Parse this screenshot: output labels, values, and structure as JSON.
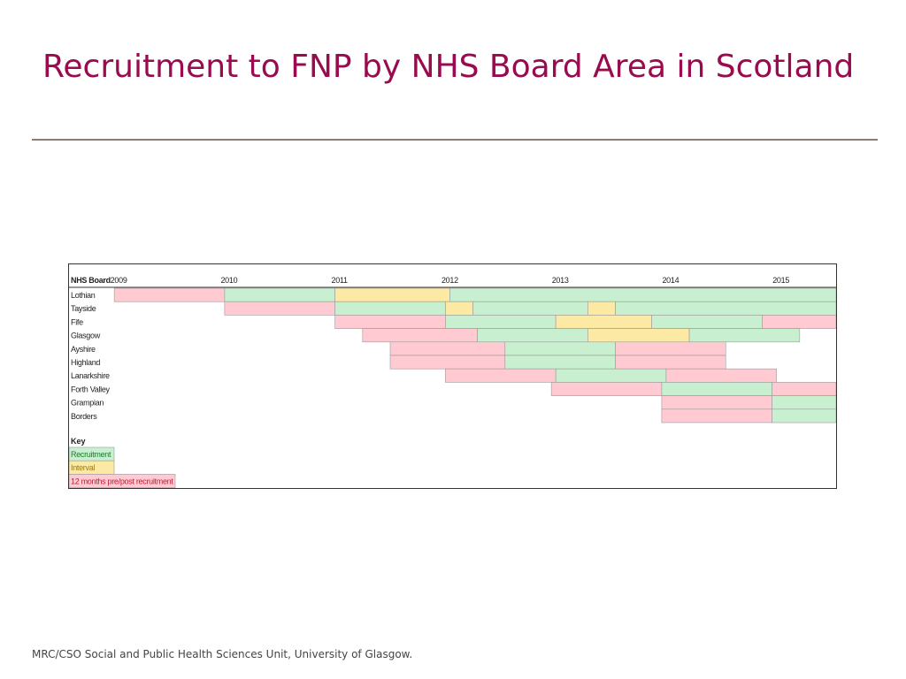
{
  "page": {
    "title": "Recruitment to FNP by NHS Board Area in Scotland",
    "footer": "MRC/CSO Social and Public Health Sciences Unit, University of Glasgow."
  },
  "chart_data": {
    "type": "table",
    "title": "",
    "row_header": "NHS Board",
    "years": [
      "2009",
      "2010",
      "2011",
      "2012",
      "2013",
      "2014",
      "2015"
    ],
    "x_range": [
      2008.55,
      2015.5
    ],
    "grid": false,
    "boards": [
      {
        "name": "Lothian",
        "segments": [
          {
            "start": 2008.96,
            "end": 2009.96,
            "status": "pre_post"
          },
          {
            "start": 2009.96,
            "end": 2010.96,
            "status": "recruitment"
          },
          {
            "start": 2010.96,
            "end": 2012.0,
            "status": "interval"
          },
          {
            "start": 2012.0,
            "end": 2015.5,
            "status": "recruitment"
          }
        ]
      },
      {
        "name": "Tayside",
        "segments": [
          {
            "start": 2009.96,
            "end": 2010.96,
            "status": "pre_post"
          },
          {
            "start": 2010.96,
            "end": 2011.96,
            "status": "recruitment"
          },
          {
            "start": 2011.96,
            "end": 2012.21,
            "status": "interval"
          },
          {
            "start": 2012.21,
            "end": 2013.25,
            "status": "recruitment"
          },
          {
            "start": 2013.25,
            "end": 2013.5,
            "status": "interval"
          },
          {
            "start": 2013.5,
            "end": 2015.5,
            "status": "recruitment"
          }
        ]
      },
      {
        "name": "Fife",
        "segments": [
          {
            "start": 2010.96,
            "end": 2011.96,
            "status": "pre_post"
          },
          {
            "start": 2011.96,
            "end": 2012.96,
            "status": "recruitment"
          },
          {
            "start": 2012.96,
            "end": 2013.83,
            "status": "interval"
          },
          {
            "start": 2013.83,
            "end": 2014.83,
            "status": "recruitment"
          },
          {
            "start": 2014.83,
            "end": 2015.5,
            "status": "pre_post"
          }
        ]
      },
      {
        "name": "Glasgow",
        "segments": [
          {
            "start": 2011.21,
            "end": 2012.25,
            "status": "pre_post"
          },
          {
            "start": 2012.25,
            "end": 2013.25,
            "status": "recruitment"
          },
          {
            "start": 2013.25,
            "end": 2014.17,
            "status": "interval"
          },
          {
            "start": 2014.17,
            "end": 2015.17,
            "status": "recruitment"
          }
        ]
      },
      {
        "name": "Ayshire",
        "segments": [
          {
            "start": 2011.46,
            "end": 2012.5,
            "status": "pre_post"
          },
          {
            "start": 2012.5,
            "end": 2013.5,
            "status": "recruitment"
          },
          {
            "start": 2013.5,
            "end": 2014.5,
            "status": "pre_post"
          }
        ]
      },
      {
        "name": "Highland",
        "segments": [
          {
            "start": 2011.46,
            "end": 2012.5,
            "status": "pre_post"
          },
          {
            "start": 2012.5,
            "end": 2013.5,
            "status": "recruitment"
          },
          {
            "start": 2013.5,
            "end": 2014.5,
            "status": "pre_post"
          }
        ]
      },
      {
        "name": "Lanarkshire",
        "segments": [
          {
            "start": 2011.96,
            "end": 2012.96,
            "status": "pre_post"
          },
          {
            "start": 2012.96,
            "end": 2013.96,
            "status": "recruitment"
          },
          {
            "start": 2013.96,
            "end": 2014.96,
            "status": "pre_post"
          }
        ]
      },
      {
        "name": "Forth Valley",
        "segments": [
          {
            "start": 2012.92,
            "end": 2013.92,
            "status": "pre_post"
          },
          {
            "start": 2013.92,
            "end": 2014.92,
            "status": "recruitment"
          },
          {
            "start": 2014.92,
            "end": 2015.5,
            "status": "pre_post"
          }
        ]
      },
      {
        "name": "Grampian",
        "segments": [
          {
            "start": 2013.92,
            "end": 2014.92,
            "status": "pre_post"
          },
          {
            "start": 2014.92,
            "end": 2015.5,
            "status": "recruitment"
          }
        ]
      },
      {
        "name": "Borders",
        "segments": [
          {
            "start": 2013.92,
            "end": 2014.92,
            "status": "pre_post"
          },
          {
            "start": 2014.92,
            "end": 2015.5,
            "status": "recruitment"
          }
        ]
      }
    ],
    "key": {
      "title": "Key",
      "items": [
        {
          "status": "recruitment",
          "label": "Recruitment"
        },
        {
          "status": "interval",
          "label": "Interval"
        },
        {
          "status": "pre_post",
          "label": "12 months pre/post recruitment"
        }
      ]
    },
    "colors": {
      "recruitment": "#c8efcf",
      "interval": "#fce9a3",
      "pre_post": "#ffcad2",
      "recruitment_text": "#1f7a2e",
      "interval_text": "#a37a00",
      "pre_post_text": "#b8203a",
      "outline": "#9a9a9a"
    }
  }
}
